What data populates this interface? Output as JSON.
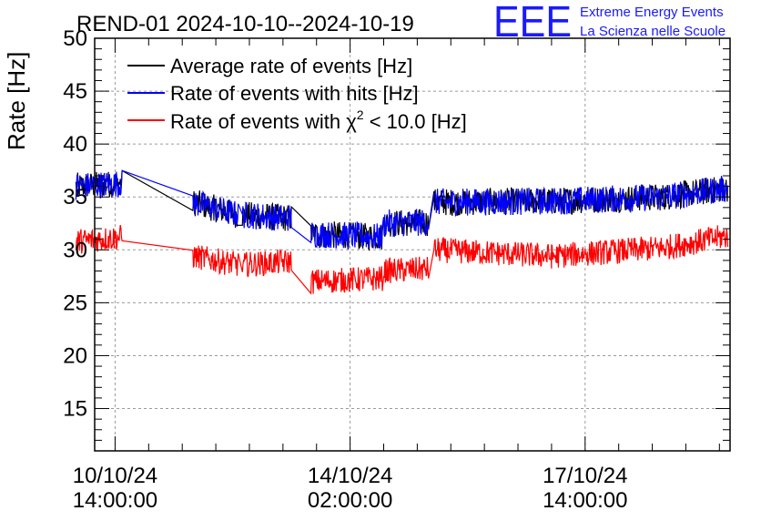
{
  "header": {
    "title": "REND-01 2024-10-10--2024-10-19",
    "logo_text": "EEE",
    "org_line1": "Extreme Energy Events",
    "org_line2": "La Scienza nelle Scuole"
  },
  "colors": {
    "average": "#000000",
    "hits": "#0000ff",
    "chi2": "#ff0000",
    "logo": "#1a1aff",
    "grid": "#9a9a9a"
  },
  "chart_data": {
    "type": "line",
    "title": "REND-01 2024-10-10--2024-10-19",
    "xlabel": "",
    "ylabel": "Rate [Hz]",
    "ylim": [
      11,
      50
    ],
    "xlim_hours_from_2024_10_10_00": [
      6.7,
      233.8
    ],
    "grid": true,
    "legend_position": "top-left",
    "y_ticks": [
      "15",
      "20",
      "25",
      "30",
      "35",
      "40",
      "45",
      "50"
    ],
    "x_ticks": [
      {
        "date": "10/10/24",
        "time": "14:00:00",
        "hours": 14
      },
      {
        "date": "14/10/24",
        "time": "02:00:00",
        "hours": 98
      },
      {
        "date": "17/10/24",
        "time": "14:00:00",
        "hours": 182
      }
    ],
    "series": [
      {
        "name": "Average rate of events [Hz]",
        "key": "average",
        "segments": [
          [
            [
              0.0,
              36.0
            ],
            [
              16.5,
              36.3
            ]
          ],
          [
            [
              41.8,
              34.5
            ],
            [
              58.0,
              33.3
            ]
          ],
          [
            [
              59.5,
              33.3
            ],
            [
              77.0,
              33.0
            ]
          ],
          [
            [
              84.0,
              31.5
            ],
            [
              109.5,
              31.2
            ]
          ],
          [
            [
              110.0,
              32.5
            ],
            [
              126.0,
              32.6
            ]
          ],
          [
            [
              128.0,
              34.5
            ],
            [
              170.0,
              34.6
            ],
            [
              210.0,
              35.0
            ],
            [
              233.0,
              35.8
            ]
          ]
        ]
      },
      {
        "name": "Rate of events with hits [Hz]",
        "key": "hits",
        "segments": [
          [
            [
              0.0,
              36.0
            ],
            [
              16.5,
              36.3
            ]
          ],
          [
            [
              41.8,
              34.5
            ],
            [
              58.0,
              33.3
            ]
          ],
          [
            [
              59.5,
              33.3
            ],
            [
              77.0,
              33.0
            ]
          ],
          [
            [
              84.0,
              31.5
            ],
            [
              109.5,
              31.2
            ]
          ],
          [
            [
              110.0,
              32.5
            ],
            [
              126.0,
              32.6
            ]
          ],
          [
            [
              128.0,
              34.5
            ],
            [
              170.0,
              34.6
            ],
            [
              210.0,
              35.0
            ],
            [
              233.0,
              35.8
            ]
          ]
        ]
      },
      {
        "name": "Rate of events with χ² < 10.0 [Hz]",
        "key": "chi2",
        "segments": [
          [
            [
              0.0,
              30.8
            ],
            [
              16.5,
              31.2
            ]
          ],
          [
            [
              41.8,
              29.4
            ],
            [
              58.0,
              28.6
            ]
          ],
          [
            [
              59.5,
              28.6
            ],
            [
              77.0,
              28.9
            ]
          ],
          [
            [
              84.0,
              27.0
            ],
            [
              109.5,
              27.3
            ]
          ],
          [
            [
              110.0,
              28.0
            ],
            [
              126.0,
              28.2
            ]
          ],
          [
            [
              128.0,
              30.0
            ],
            [
              170.0,
              29.4
            ],
            [
              210.0,
              30.2
            ],
            [
              233.0,
              31.3
            ]
          ]
        ]
      }
    ],
    "legend_labels": {
      "average": "Average rate of events [Hz]",
      "hits": "Rate of events with hits [Hz]",
      "chi2_prefix": "Rate of events with ",
      "chi2_symbol": "χ",
      "chi2_sup": "2",
      "chi2_suffix": " < 10.0 [Hz]"
    }
  }
}
